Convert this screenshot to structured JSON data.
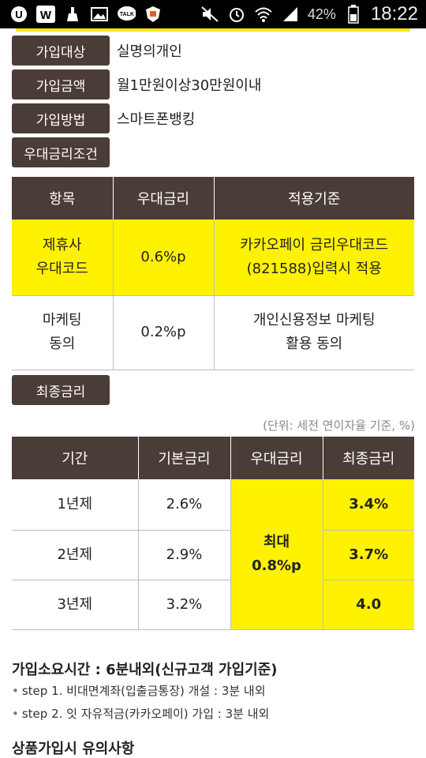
{
  "statusbar": {
    "battery_pct": "42%",
    "time": "18:22",
    "icons": [
      "u-plus-icon",
      "w-app-icon",
      "cleaner-icon",
      "gallery-icon",
      "kakaotalk-icon",
      "shield-app-icon",
      "mute-icon",
      "alarm-icon",
      "wifi-icon",
      "signal-icon",
      "battery-icon"
    ]
  },
  "info": [
    {
      "label": "가입대상",
      "value": "실명의개인"
    },
    {
      "label": "가입금액",
      "value": "월1만원이상30만원이내"
    },
    {
      "label": "가입방법",
      "value": "스마트폰뱅킹"
    }
  ],
  "preferential": {
    "section_label": "우대금리조건",
    "headers": [
      "항목",
      "우대금리",
      "적용기준"
    ],
    "rows": [
      {
        "item_line1": "제휴사",
        "item_line2": "우대코드",
        "rate": "0.6%p",
        "basis_line1": "카카오페이 금리우대코드",
        "basis_line2": "(821588)입력시 적용"
      },
      {
        "item_line1": "마케팅",
        "item_line2": "동의",
        "rate": "0.2%p",
        "basis_line1": "개인신용정보 마케팅",
        "basis_line2": "활용 동의"
      }
    ]
  },
  "final_rate": {
    "section_label": "최종금리",
    "note": "(단위: 세전 연이자율 기준, %)",
    "headers": [
      "기간",
      "기본금리",
      "우대금리",
      "최종금리"
    ],
    "rows": [
      {
        "period": "1년제",
        "base": "2.6%",
        "final": "3.4%"
      },
      {
        "period": "2년제",
        "base": "2.9%",
        "final": "3.7%"
      },
      {
        "period": "3년제",
        "base": "3.2%",
        "final": "4.0"
      }
    ],
    "pref_line1": "최대",
    "pref_line2": "0.8%p"
  },
  "duration": {
    "title": "가입소요시간 : 6분내외(신규고객 가입기준)",
    "steps": [
      "step 1. 비대면계좌(입출금통장) 개설 : 3분 내외",
      "step 2. 잇 자유적금(카카오페이) 가입 : 3분 내외"
    ]
  },
  "caution_title": "상품가입시 유의사항",
  "colors": {
    "accent_yellow": "#fff200",
    "header_brown": "#4a3c36"
  }
}
